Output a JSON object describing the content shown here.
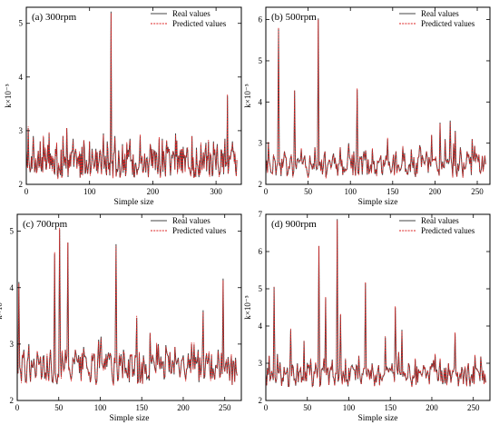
{
  "chart_data": [
    {
      "type": "line",
      "title": "(a)  300rpm",
      "xlabel": "Simple size",
      "ylabel": "k×10⁻⁵",
      "xlim": [
        0,
        340
      ],
      "ylim": [
        2,
        5.3
      ],
      "xticks": [
        0,
        100,
        200,
        300
      ],
      "yticks": [
        2,
        3,
        4,
        5
      ],
      "legend": [
        "Real values",
        "Predicted values"
      ],
      "legend_position": "top-right",
      "base": 2.4,
      "spikes": [
        [
          3,
          3.05
        ],
        [
          11,
          2.9
        ],
        [
          22,
          2.8
        ],
        [
          36,
          2.95
        ],
        [
          48,
          2.75
        ],
        [
          58,
          2.9
        ],
        [
          64,
          3.05
        ],
        [
          74,
          2.85
        ],
        [
          88,
          2.7
        ],
        [
          100,
          2.8
        ],
        [
          112,
          2.6
        ],
        [
          122,
          2.95
        ],
        [
          128,
          2.8
        ],
        [
          134,
          5.22
        ],
        [
          140,
          2.9
        ],
        [
          152,
          2.75
        ],
        [
          164,
          2.85
        ],
        [
          180,
          2.9
        ],
        [
          196,
          2.75
        ],
        [
          210,
          2.85
        ],
        [
          222,
          2.8
        ],
        [
          236,
          2.95
        ],
        [
          248,
          2.7
        ],
        [
          262,
          2.9
        ],
        [
          276,
          2.75
        ],
        [
          288,
          2.8
        ],
        [
          296,
          2.8
        ],
        [
          302,
          2.75
        ],
        [
          314,
          2.85
        ],
        [
          318,
          3.65
        ],
        [
          326,
          2.8
        ]
      ]
    },
    {
      "type": "line",
      "title": "(b)  500rpm",
      "xlabel": "Simple size",
      "ylabel": "k×10⁻⁵",
      "xlim": [
        0,
        265
      ],
      "ylim": [
        2,
        6.3
      ],
      "xticks": [
        0,
        50,
        100,
        150,
        200,
        250
      ],
      "yticks": [
        2,
        3,
        4,
        5,
        6
      ],
      "legend": [
        "Real values",
        "Predicted values"
      ],
      "legend_position": "top-right",
      "base": 2.45,
      "spikes": [
        [
          3,
          3.0
        ],
        [
          9,
          2.7
        ],
        [
          15,
          5.78
        ],
        [
          22,
          2.8
        ],
        [
          30,
          2.7
        ],
        [
          34,
          4.28
        ],
        [
          42,
          2.85
        ],
        [
          52,
          2.7
        ],
        [
          58,
          2.9
        ],
        [
          62,
          6.03
        ],
        [
          70,
          2.8
        ],
        [
          80,
          2.75
        ],
        [
          88,
          2.9
        ],
        [
          98,
          3.0
        ],
        [
          104,
          2.8
        ],
        [
          108,
          4.3
        ],
        [
          116,
          2.8
        ],
        [
          126,
          2.85
        ],
        [
          136,
          2.7
        ],
        [
          144,
          3.1
        ],
        [
          154,
          2.8
        ],
        [
          162,
          2.9
        ],
        [
          172,
          2.85
        ],
        [
          182,
          2.95
        ],
        [
          190,
          2.8
        ],
        [
          196,
          3.2
        ],
        [
          206,
          3.5
        ],
        [
          212,
          3.1
        ],
        [
          218,
          3.55
        ],
        [
          224,
          3.3
        ],
        [
          230,
          2.9
        ],
        [
          238,
          2.8
        ],
        [
          244,
          3.1
        ],
        [
          252,
          2.7
        ]
      ]
    },
    {
      "type": "line",
      "title": "(c)  700rpm",
      "xlabel": "Simple size",
      "ylabel": "k×10⁻⁵",
      "xlim": [
        0,
        270
      ],
      "ylim": [
        2,
        5.3
      ],
      "xticks": [
        0,
        50,
        100,
        150,
        200,
        250
      ],
      "yticks": [
        2,
        3,
        4,
        5
      ],
      "legend": [
        "Real values",
        "Predicted values"
      ],
      "legend_position": "top-right",
      "base": 2.55,
      "spikes": [
        [
          2,
          4.1
        ],
        [
          8,
          2.9
        ],
        [
          14,
          3.0
        ],
        [
          24,
          2.85
        ],
        [
          32,
          2.8
        ],
        [
          40,
          2.9
        ],
        [
          45,
          4.6
        ],
        [
          51,
          5.03
        ],
        [
          58,
          2.9
        ],
        [
          61,
          4.8
        ],
        [
          70,
          2.9
        ],
        [
          80,
          2.95
        ],
        [
          90,
          2.8
        ],
        [
          100,
          2.9
        ],
        [
          110,
          2.85
        ],
        [
          119,
          4.77
        ],
        [
          128,
          2.9
        ],
        [
          136,
          2.8
        ],
        [
          144,
          3.47
        ],
        [
          152,
          2.8
        ],
        [
          160,
          3.2
        ],
        [
          170,
          3.0
        ],
        [
          180,
          2.85
        ],
        [
          190,
          2.95
        ],
        [
          200,
          2.8
        ],
        [
          210,
          3.0
        ],
        [
          218,
          2.9
        ],
        [
          224,
          3.6
        ],
        [
          234,
          2.8
        ],
        [
          242,
          2.9
        ],
        [
          248,
          4.16
        ],
        [
          252,
          2.7
        ]
      ]
    },
    {
      "type": "line",
      "title": "(d)  900rpm",
      "xlabel": "Simple size",
      "ylabel": "k×10⁻⁵",
      "xlim": [
        0,
        270
      ],
      "ylim": [
        2,
        7
      ],
      "xticks": [
        0,
        50,
        100,
        150,
        200,
        250
      ],
      "yticks": [
        2,
        3,
        4,
        5,
        6,
        7
      ],
      "legend": [
        "Real values",
        "Predicted values"
      ],
      "legend_position": "top-right",
      "base": 2.65,
      "spikes": [
        [
          4,
          3.2
        ],
        [
          10,
          5.05
        ],
        [
          14,
          3.25
        ],
        [
          22,
          2.9
        ],
        [
          30,
          3.9
        ],
        [
          38,
          3.0
        ],
        [
          46,
          3.6
        ],
        [
          54,
          3.1
        ],
        [
          60,
          3.0
        ],
        [
          64,
          6.15
        ],
        [
          72,
          4.75
        ],
        [
          80,
          3.1
        ],
        [
          86,
          6.87
        ],
        [
          90,
          4.3
        ],
        [
          96,
          3.1
        ],
        [
          104,
          2.95
        ],
        [
          112,
          3.2
        ],
        [
          120,
          5.15
        ],
        [
          128,
          3.0
        ],
        [
          136,
          2.95
        ],
        [
          144,
          3.7
        ],
        [
          152,
          3.0
        ],
        [
          156,
          4.5
        ],
        [
          160,
          3.3
        ],
        [
          164,
          3.9
        ],
        [
          172,
          3.0
        ],
        [
          180,
          3.1
        ],
        [
          190,
          2.95
        ],
        [
          200,
          3.0
        ],
        [
          210,
          3.1
        ],
        [
          220,
          3.0
        ],
        [
          228,
          3.8
        ],
        [
          236,
          2.9
        ],
        [
          244,
          3.0
        ],
        [
          252,
          3.2
        ]
      ]
    }
  ]
}
